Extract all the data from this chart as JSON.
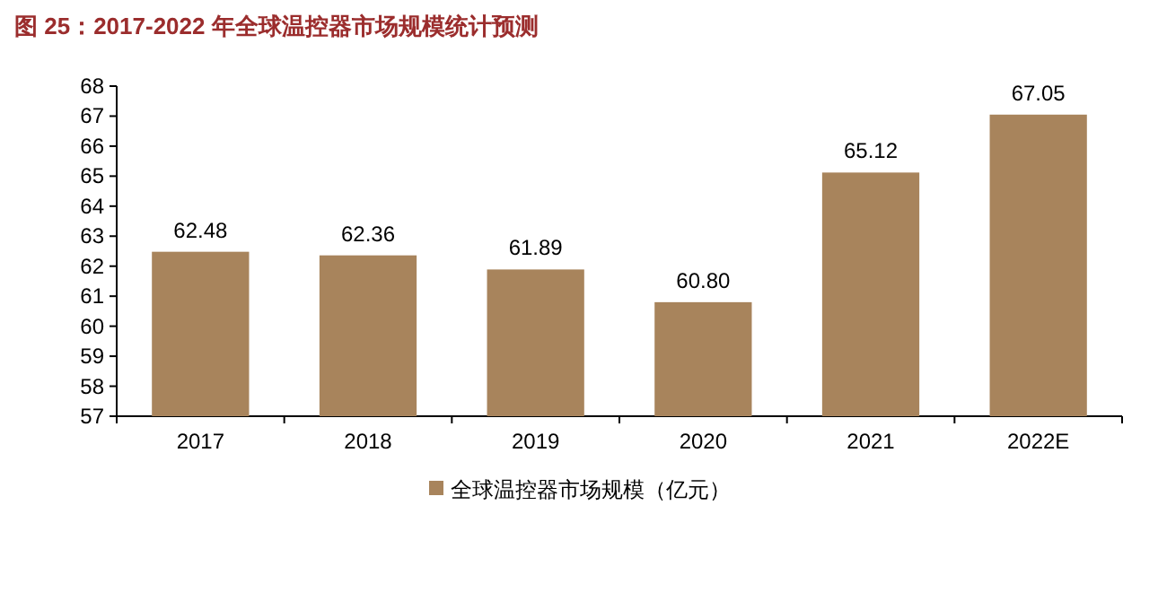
{
  "chart_data": {
    "type": "bar",
    "title": "图 25：2017-2022 年全球温控器市场规模统计预测",
    "categories": [
      "2017",
      "2018",
      "2019",
      "2020",
      "2021",
      "2022E"
    ],
    "series": [
      {
        "name": "全球温控器市场规模（亿元）",
        "color": "#a8845c",
        "values": [
          62.48,
          62.36,
          61.89,
          60.8,
          65.12,
          67.05
        ],
        "value_labels": [
          "62.48",
          "62.36",
          "61.89",
          "60.80",
          "65.12",
          "67.05"
        ]
      }
    ],
    "ylim": [
      57,
      68
    ],
    "yticks": [
      57,
      58,
      59,
      60,
      61,
      62,
      63,
      64,
      65,
      66,
      67,
      68
    ],
    "legend": "bottom"
  }
}
